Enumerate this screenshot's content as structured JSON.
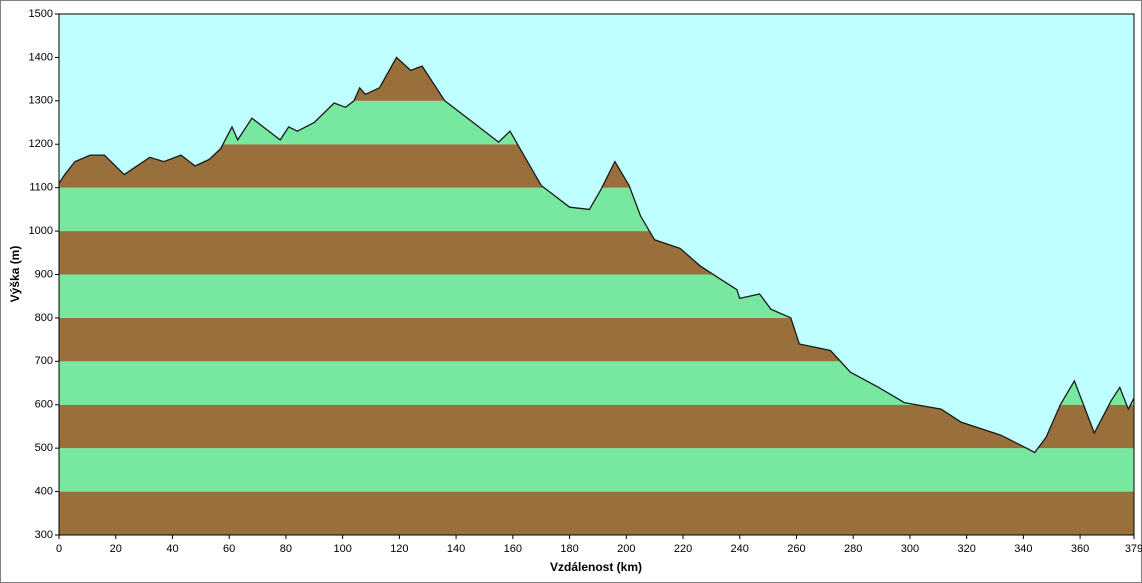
{
  "chart_data": {
    "type": "area",
    "xlabel": "Vzdálenost  (km)",
    "ylabel": "Výška (m)",
    "x": [
      0,
      2,
      5.6,
      11,
      16,
      23,
      32,
      37,
      43,
      48,
      53,
      57,
      61,
      63,
      68,
      73,
      78,
      81,
      84,
      90,
      97,
      101,
      104,
      106,
      108,
      113,
      119,
      124,
      128,
      136,
      148,
      155,
      159,
      170,
      180,
      187,
      191,
      196,
      201,
      205,
      210,
      219,
      226,
      233,
      239,
      240,
      247,
      251,
      258,
      261,
      272,
      279,
      289,
      298,
      311,
      318,
      332,
      339,
      344,
      348,
      353,
      358,
      365,
      371,
      374,
      377,
      379
    ],
    "values": [
      1110,
      1130,
      1160,
      1175,
      1175,
      1130,
      1170,
      1160,
      1175,
      1150,
      1165,
      1190,
      1240,
      1210,
      1260,
      1235,
      1210,
      1240,
      1230,
      1250,
      1295,
      1285,
      1300,
      1330,
      1315,
      1330,
      1400,
      1370,
      1380,
      1300,
      1240,
      1205,
      1230,
      1105,
      1055,
      1050,
      1095,
      1160,
      1105,
      1035,
      980,
      960,
      920,
      890,
      865,
      845,
      855,
      820,
      800,
      740,
      725,
      675,
      640,
      605,
      590,
      560,
      530,
      507,
      490,
      525,
      600,
      655,
      535,
      610,
      640,
      590,
      615
    ],
    "xlim": [
      0,
      379
    ],
    "ylim": [
      300,
      1500
    ],
    "xticks": [
      0,
      20,
      40,
      60,
      80,
      100,
      120,
      140,
      160,
      180,
      200,
      220,
      240,
      260,
      280,
      300,
      320,
      340,
      360,
      379
    ],
    "yticks": [
      300,
      400,
      500,
      600,
      700,
      800,
      900,
      1000,
      1100,
      1200,
      1300,
      1400,
      1500
    ],
    "band_colors": [
      "#996f3c",
      "#78e8a0"
    ],
    "sky_color": "#c0ffff",
    "line_color": "#1a1a1a"
  }
}
